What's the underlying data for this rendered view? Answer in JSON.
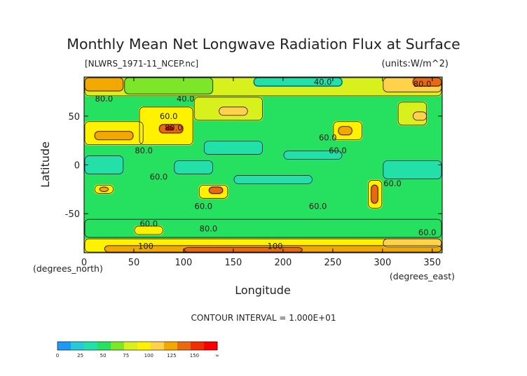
{
  "chart_data": {
    "type": "heatmap",
    "title": "Monthly Mean Net Longwave Radiation Flux at Surface",
    "subtitle_left": "[NLWRS_1971-11_NCEP.nc]",
    "subtitle_right": "(units:W/m^2)",
    "xlabel": "Longitude",
    "ylabel": "Latitude",
    "x_unit_label": "(degrees_east)",
    "y_unit_label": "(degrees_north)",
    "xlim": [
      0,
      360
    ],
    "ylim": [
      -90,
      90
    ],
    "x_ticks": [
      0,
      50,
      100,
      150,
      200,
      250,
      300,
      350
    ],
    "y_ticks": [
      -50,
      0,
      50
    ],
    "contour_interval_text": "CONTOUR INTERVAL = 1.000E+01",
    "contour_labels": [
      {
        "text": "40.0",
        "lon": 240,
        "lat": 82
      },
      {
        "text": "40.0",
        "lon": 102,
        "lat": 65
      },
      {
        "text": "60.0",
        "lon": 85,
        "lat": 47
      },
      {
        "text": "80.0",
        "lon": 90,
        "lat": 35
      },
      {
        "text": "80.0",
        "lon": 20,
        "lat": 65
      },
      {
        "text": "80.0",
        "lon": 60,
        "lat": 12
      },
      {
        "text": "60.0",
        "lon": 245,
        "lat": 25
      },
      {
        "text": "60.0",
        "lon": 255,
        "lat": 12
      },
      {
        "text": "60.0",
        "lon": 75,
        "lat": -15
      },
      {
        "text": "60.0",
        "lon": 120,
        "lat": -45
      },
      {
        "text": "60.0",
        "lon": 235,
        "lat": -45
      },
      {
        "text": "60.0",
        "lon": 310,
        "lat": -22
      },
      {
        "text": "60.0",
        "lon": 65,
        "lat": -63
      },
      {
        "text": "80.0",
        "lon": 125,
        "lat": -68
      },
      {
        "text": "80.0",
        "lon": 340,
        "lat": 80
      },
      {
        "text": "60.0",
        "lon": 345,
        "lat": -72
      },
      {
        "text": "100",
        "lon": 62,
        "lat": -86
      },
      {
        "text": "100",
        "lon": 192,
        "lat": -86
      }
    ],
    "colorbar": {
      "levels": [
        "0",
        "25",
        "50",
        "75",
        "100",
        "125",
        "150",
        "∞"
      ],
      "colors": [
        "#1e9bf0",
        "#26c9d6",
        "#22e0a8",
        "#26e060",
        "#7ee628",
        "#d8f01c",
        "#fff200",
        "#ffd24a",
        "#f3a800",
        "#e86a10",
        "#f12e00",
        "#fb0000"
      ]
    },
    "regions": [
      {
        "lon": [
          0,
          360
        ],
        "lat": [
          -90,
          90
        ],
        "level": 3
      },
      {
        "lon": [
          0,
          360
        ],
        "lat": [
          70,
          90
        ],
        "level": 5
      },
      {
        "lon": [
          0,
          40
        ],
        "lat": [
          75,
          90
        ],
        "level": 8
      },
      {
        "lon": [
          40,
          130
        ],
        "lat": [
          72,
          90
        ],
        "level": 4
      },
      {
        "lon": [
          170,
          260
        ],
        "lat": [
          80,
          90
        ],
        "level": 2
      },
      {
        "lon": [
          300,
          360
        ],
        "lat": [
          74,
          90
        ],
        "level": 7
      },
      {
        "lon": [
          330,
          360
        ],
        "lat": [
          80,
          90
        ],
        "level": 9
      },
      {
        "lon": [
          0,
          60
        ],
        "lat": [
          20,
          45
        ],
        "level": 6
      },
      {
        "lon": [
          10,
          50
        ],
        "lat": [
          25,
          35
        ],
        "level": 8
      },
      {
        "lon": [
          55,
          110
        ],
        "lat": [
          20,
          60
        ],
        "level": 6
      },
      {
        "lon": [
          75,
          100
        ],
        "lat": [
          32,
          42
        ],
        "level": 9
      },
      {
        "lon": [
          82,
          90
        ],
        "lat": [
          35,
          40
        ],
        "level": 11
      },
      {
        "lon": [
          110,
          180
        ],
        "lat": [
          45,
          70
        ],
        "level": 5
      },
      {
        "lon": [
          135,
          165
        ],
        "lat": [
          50,
          60
        ],
        "level": 7
      },
      {
        "lon": [
          250,
          280
        ],
        "lat": [
          25,
          45
        ],
        "level": 6
      },
      {
        "lon": [
          255,
          270
        ],
        "lat": [
          30,
          40
        ],
        "level": 8
      },
      {
        "lon": [
          315,
          345
        ],
        "lat": [
          40,
          65
        ],
        "level": 5
      },
      {
        "lon": [
          330,
          345
        ],
        "lat": [
          45,
          55
        ],
        "level": 7
      },
      {
        "lon": [
          0,
          40
        ],
        "lat": [
          -10,
          10
        ],
        "level": 2
      },
      {
        "lon": [
          90,
          130
        ],
        "lat": [
          -10,
          5
        ],
        "level": 2
      },
      {
        "lon": [
          120,
          180
        ],
        "lat": [
          10,
          25
        ],
        "level": 2
      },
      {
        "lon": [
          200,
          260
        ],
        "lat": [
          5,
          15
        ],
        "level": 2
      },
      {
        "lon": [
          300,
          360
        ],
        "lat": [
          -15,
          5
        ],
        "level": 2
      },
      {
        "lon": [
          150,
          230
        ],
        "lat": [
          -20,
          -10
        ],
        "level": 2
      },
      {
        "lon": [
          10,
          30
        ],
        "lat": [
          -30,
          -20
        ],
        "level": 6
      },
      {
        "lon": [
          15,
          25
        ],
        "lat": [
          -28,
          -22
        ],
        "level": 8
      },
      {
        "lon": [
          115,
          145
        ],
        "lat": [
          -35,
          -20
        ],
        "level": 6
      },
      {
        "lon": [
          125,
          140
        ],
        "lat": [
          -30,
          -22
        ],
        "level": 9
      },
      {
        "lon": [
          285,
          300
        ],
        "lat": [
          -45,
          -15
        ],
        "level": 6
      },
      {
        "lon": [
          288,
          296
        ],
        "lat": [
          -40,
          -20
        ],
        "level": 9
      },
      {
        "lon": [
          0,
          360
        ],
        "lat": [
          -75,
          -55
        ],
        "level": 3
      },
      {
        "lon": [
          50,
          80
        ],
        "lat": [
          -72,
          -62
        ],
        "level": 6
      },
      {
        "lon": [
          0,
          360
        ],
        "lat": [
          -90,
          -75
        ],
        "level": 6
      },
      {
        "lon": [
          20,
          360
        ],
        "lat": [
          -90,
          -82
        ],
        "level": 8
      },
      {
        "lon": [
          100,
          220
        ],
        "lat": [
          -90,
          -84
        ],
        "level": 9
      },
      {
        "lon": [
          300,
          360
        ],
        "lat": [
          -85,
          -75
        ],
        "level": 7
      }
    ]
  }
}
